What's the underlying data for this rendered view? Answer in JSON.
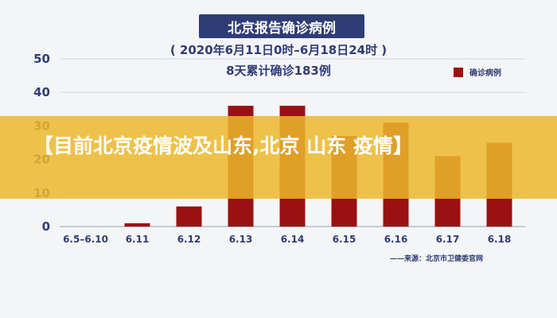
{
  "chart_data": {
    "type": "bar",
    "title": "北京报告确诊病例",
    "subtitle": "( 2020年6月11日0时–6月18日24时 )",
    "summary": "8天累计确诊183例",
    "categories": [
      "6.5–6.10",
      "6.11",
      "6.12",
      "6.13",
      "6.14",
      "6.15",
      "6.16",
      "6.17",
      "6.18"
    ],
    "series": [
      {
        "name": "确诊病例",
        "values": [
          0,
          1,
          6,
          36,
          36,
          27,
          31,
          21,
          25
        ],
        "color": "#9b1111"
      }
    ],
    "ylim": [
      0,
      50
    ],
    "yticks": [
      "0",
      "10",
      "20",
      "30",
      "40",
      "50"
    ],
    "grid": true,
    "legend": "top-right",
    "source": "——来源：北京市卫健委官网"
  },
  "overlay": {
    "headline": "【目前北京疫情波及山东,北京 山东 疫情】",
    "color": "#ecb82c"
  }
}
